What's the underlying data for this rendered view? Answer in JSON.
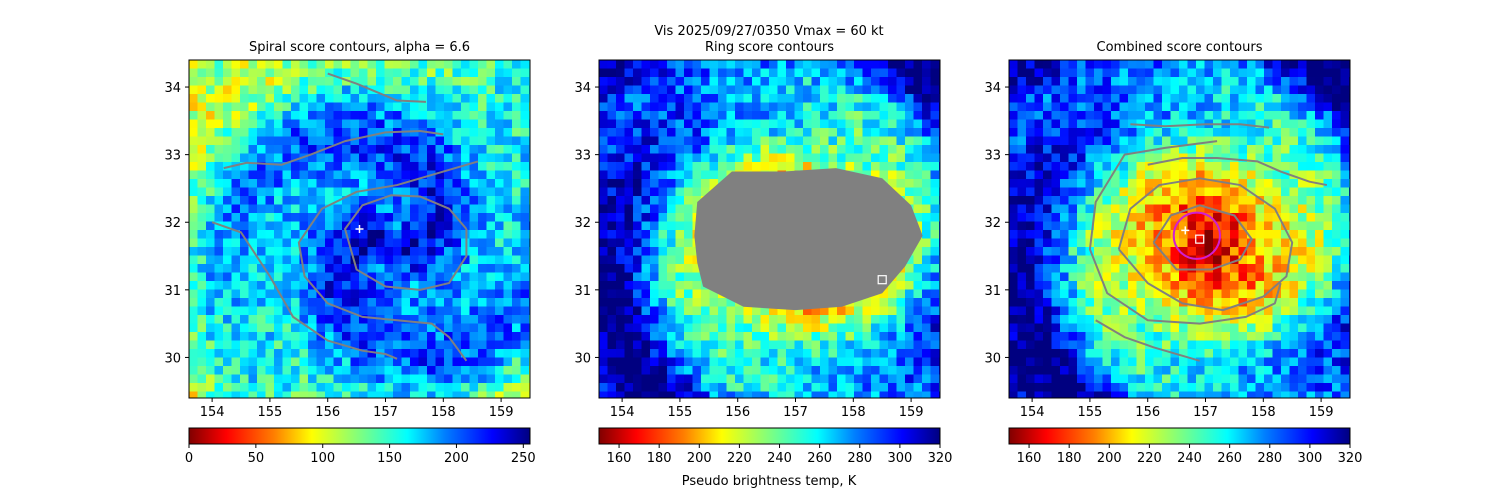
{
  "figure": {
    "suptitle_line1": "Vis  2025/09/27/0350    Vmax = 60 kt",
    "colorbar_label": "Pseudo brightness temp, K"
  },
  "chart_data": [
    {
      "type": "heatmap",
      "title": "Spiral score contours, alpha =  6.6",
      "xlim": [
        153.6,
        159.5
      ],
      "ylim": [
        29.4,
        34.4
      ],
      "xticks": [
        "154",
        "155",
        "156",
        "157",
        "158",
        "159"
      ],
      "xtick_values": [
        154,
        155,
        156,
        157,
        158,
        159
      ],
      "yticks": [
        "30",
        "31",
        "32",
        "33",
        "34"
      ],
      "ytick_values": [
        30,
        31,
        32,
        33,
        34
      ],
      "colorbar": {
        "ticks": [
          "0",
          "50",
          "100",
          "150",
          "200",
          "250"
        ],
        "tick_values": [
          0,
          50,
          100,
          150,
          200,
          250
        ],
        "range": [
          0,
          255
        ],
        "colormap_reversed": true
      },
      "markers": [
        {
          "symbol": "plus",
          "x": 156.55,
          "y": 31.9,
          "color": "#ffffff"
        }
      ],
      "contour_color": "#808080",
      "contours": [
        [
          [
            156.0,
            34.2
          ],
          [
            156.5,
            34.05
          ],
          [
            157.2,
            33.8
          ],
          [
            157.7,
            33.78
          ]
        ],
        [
          [
            154.2,
            32.8
          ],
          [
            154.6,
            32.88
          ],
          [
            155.2,
            32.85
          ],
          [
            155.7,
            33.0
          ],
          [
            156.3,
            33.2
          ],
          [
            157.0,
            33.33
          ],
          [
            157.6,
            33.35
          ],
          [
            158.0,
            33.3
          ]
        ],
        [
          [
            154.0,
            32.0
          ],
          [
            154.5,
            31.85
          ],
          [
            155.0,
            31.2
          ],
          [
            155.4,
            30.6
          ],
          [
            156.0,
            30.25
          ],
          [
            156.6,
            30.1
          ],
          [
            157.0,
            30.05
          ],
          [
            157.2,
            29.98
          ]
        ],
        [
          [
            158.6,
            32.9
          ],
          [
            158.0,
            32.75
          ],
          [
            157.2,
            32.55
          ],
          [
            156.5,
            32.45
          ],
          [
            155.9,
            32.2
          ],
          [
            155.5,
            31.7
          ],
          [
            155.6,
            31.2
          ],
          [
            156.0,
            30.8
          ],
          [
            156.6,
            30.6
          ],
          [
            157.2,
            30.55
          ],
          [
            157.8,
            30.5
          ],
          [
            158.1,
            30.3
          ],
          [
            158.4,
            29.95
          ]
        ],
        [
          [
            158.4,
            31.9
          ],
          [
            158.1,
            32.2
          ],
          [
            157.6,
            32.38
          ],
          [
            157.1,
            32.4
          ],
          [
            156.6,
            32.25
          ],
          [
            156.3,
            31.9
          ],
          [
            156.5,
            31.3
          ],
          [
            157.0,
            31.05
          ],
          [
            157.6,
            31.0
          ],
          [
            158.1,
            31.1
          ],
          [
            158.4,
            31.5
          ],
          [
            158.4,
            31.9
          ]
        ]
      ]
    },
    {
      "type": "heatmap",
      "title": "Ring score contours",
      "xlim": [
        153.6,
        159.5
      ],
      "ylim": [
        29.4,
        34.4
      ],
      "xticks": [
        "154",
        "155",
        "156",
        "157",
        "158",
        "159"
      ],
      "xtick_values": [
        154,
        155,
        156,
        157,
        158,
        159
      ],
      "yticks": [
        "30",
        "31",
        "32",
        "33",
        "34"
      ],
      "ytick_values": [
        30,
        31,
        32,
        33,
        34
      ],
      "colorbar": {
        "ticks": [
          "160",
          "180",
          "200",
          "220",
          "240",
          "260",
          "280",
          "300",
          "320"
        ],
        "tick_values": [
          160,
          180,
          200,
          220,
          240,
          260,
          280,
          300,
          320
        ],
        "range": [
          150,
          320
        ],
        "colormap_reversed": true
      },
      "markers": [
        {
          "symbol": "square",
          "x": 158.5,
          "y": 31.15,
          "color": "#ffffff"
        }
      ],
      "contour_color": "#808080",
      "filled_region": [
        [
          155.3,
          32.3
        ],
        [
          155.9,
          32.75
        ],
        [
          156.8,
          32.75
        ],
        [
          157.7,
          32.8
        ],
        [
          158.5,
          32.65
        ],
        [
          159.0,
          32.25
        ],
        [
          159.2,
          31.8
        ],
        [
          158.9,
          31.35
        ],
        [
          158.5,
          30.95
        ],
        [
          157.8,
          30.75
        ],
        [
          157.0,
          30.7
        ],
        [
          156.1,
          30.75
        ],
        [
          155.4,
          31.05
        ],
        [
          155.3,
          31.4
        ],
        [
          155.25,
          31.8
        ],
        [
          155.3,
          32.3
        ]
      ]
    },
    {
      "type": "heatmap",
      "title": "Combined score contours",
      "xlim": [
        153.6,
        159.5
      ],
      "ylim": [
        29.4,
        34.4
      ],
      "xticks": [
        "154",
        "155",
        "156",
        "157",
        "158",
        "159"
      ],
      "xtick_values": [
        154,
        155,
        156,
        157,
        158,
        159
      ],
      "yticks": [
        "30",
        "31",
        "32",
        "33",
        "34"
      ],
      "ytick_values": [
        30,
        31,
        32,
        33,
        34
      ],
      "colorbar": {
        "ticks": [
          "160",
          "180",
          "200",
          "220",
          "240",
          "260",
          "280",
          "300",
          "320"
        ],
        "tick_values": [
          160,
          180,
          200,
          220,
          240,
          260,
          280,
          300,
          320
        ],
        "range": [
          150,
          320
        ],
        "colormap_reversed": true
      },
      "markers": [
        {
          "symbol": "plus",
          "x": 156.65,
          "y": 31.88,
          "color": "#ffffff"
        },
        {
          "symbol": "square",
          "x": 156.9,
          "y": 31.75,
          "color": "#ffffff"
        }
      ],
      "circle": {
        "x": 156.85,
        "y": 31.8,
        "radius": 0.4,
        "color": "#d11fd1"
      },
      "contour_color": "#808080",
      "contours": [
        [
          [
            155.7,
            33.45
          ],
          [
            156.3,
            33.42
          ],
          [
            157.0,
            33.45
          ],
          [
            157.6,
            33.45
          ],
          [
            158.1,
            33.4
          ]
        ],
        [
          [
            155.1,
            30.55
          ],
          [
            155.6,
            30.3
          ],
          [
            156.1,
            30.15
          ],
          [
            156.5,
            30.05
          ],
          [
            156.9,
            29.95
          ]
        ],
        [
          [
            156.0,
            32.85
          ],
          [
            156.6,
            32.95
          ],
          [
            157.2,
            32.95
          ],
          [
            157.9,
            32.9
          ],
          [
            158.3,
            32.75
          ],
          [
            158.8,
            32.6
          ],
          [
            159.1,
            32.55
          ]
        ],
        [
          [
            155.5,
            31.6
          ],
          [
            155.7,
            32.2
          ],
          [
            156.2,
            32.55
          ],
          [
            156.9,
            32.65
          ],
          [
            157.6,
            32.55
          ],
          [
            158.2,
            32.2
          ],
          [
            158.5,
            31.7
          ],
          [
            158.4,
            31.2
          ],
          [
            158.0,
            30.9
          ],
          [
            157.3,
            30.7
          ],
          [
            156.6,
            30.8
          ],
          [
            156.0,
            31.1
          ],
          [
            155.5,
            31.6
          ]
        ],
        [
          [
            156.1,
            31.7
          ],
          [
            156.4,
            32.1
          ],
          [
            156.9,
            32.25
          ],
          [
            157.5,
            32.1
          ],
          [
            157.8,
            31.75
          ],
          [
            157.6,
            31.45
          ],
          [
            157.1,
            31.3
          ],
          [
            156.5,
            31.3
          ],
          [
            156.1,
            31.7
          ]
        ],
        [
          [
            157.2,
            33.2
          ],
          [
            156.3,
            33.1
          ],
          [
            155.6,
            33.0
          ],
          [
            155.1,
            32.3
          ],
          [
            155.0,
            31.6
          ],
          [
            155.3,
            30.95
          ],
          [
            156.0,
            30.55
          ],
          [
            156.9,
            30.5
          ],
          [
            157.7,
            30.6
          ],
          [
            158.2,
            30.8
          ],
          [
            158.3,
            31.1
          ]
        ]
      ]
    }
  ]
}
